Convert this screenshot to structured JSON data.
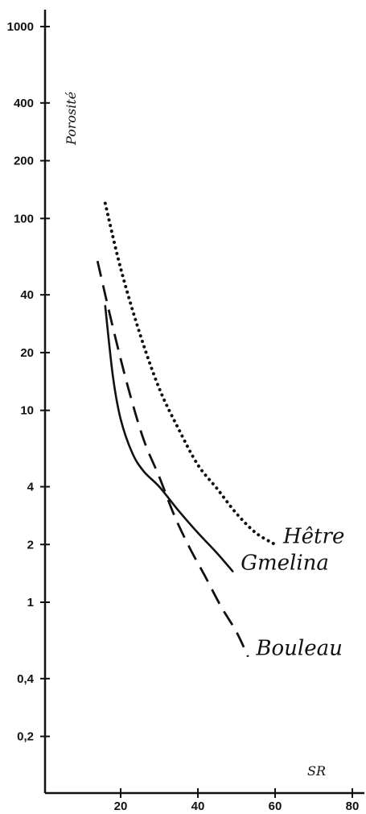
{
  "chart_data": {
    "type": "line",
    "ylabel": "Porosité",
    "xlabel": "SR",
    "y_scale": "log",
    "ylim": [
      0.1,
      1000
    ],
    "xlim": [
      0,
      80
    ],
    "grid": false,
    "x_ticks": [
      "20",
      "40",
      "60",
      "80"
    ],
    "y_ticks": [
      "1000",
      "400",
      "200",
      "100",
      "40",
      "20",
      "10",
      "4",
      "2",
      "1",
      "0,4",
      "0,2"
    ],
    "series": [
      {
        "name": "Hêtre",
        "style": "dotted",
        "x": [
          16,
          20,
          25,
          30,
          35,
          40,
          45,
          50,
          55,
          60
        ],
        "y": [
          120,
          55,
          25,
          13,
          8,
          5.2,
          3.9,
          2.9,
          2.3,
          2
        ]
      },
      {
        "name": "Gmelina",
        "style": "solid",
        "x": [
          16,
          18,
          20,
          23,
          26,
          30,
          35,
          40,
          45,
          49
        ],
        "y": [
          35,
          15,
          9,
          6,
          4.8,
          4,
          3,
          2.3,
          1.8,
          1.45
        ]
      },
      {
        "name": "Bouleau",
        "style": "dashed",
        "x": [
          14,
          18,
          22,
          26,
          30,
          34,
          38,
          42,
          46,
          50,
          53
        ],
        "y": [
          60,
          27,
          13,
          7,
          4.5,
          2.8,
          1.9,
          1.35,
          0.95,
          0.7,
          0.52
        ]
      }
    ]
  }
}
